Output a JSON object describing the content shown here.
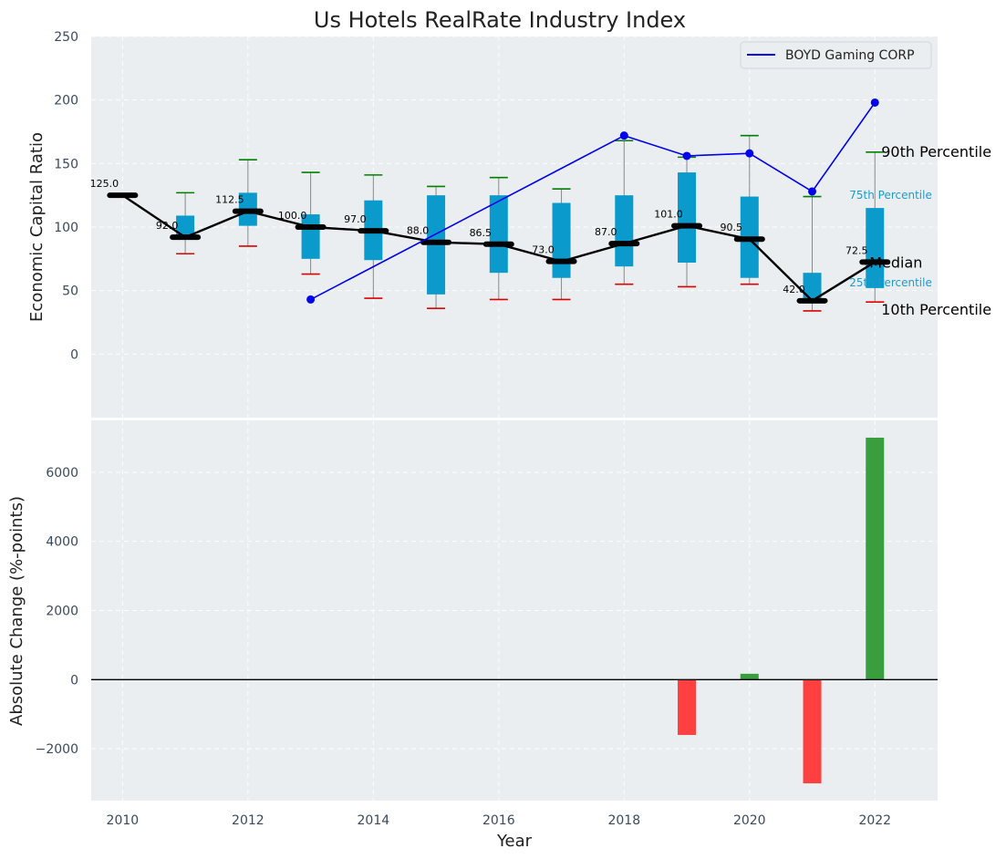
{
  "chart_data": [
    {
      "type": "box",
      "title": "Us Hotels RealRate Industry Index",
      "xlabel": "",
      "ylabel": "Economic Capital Ratio",
      "ylim": [
        -50,
        250
      ],
      "yticks": [
        0,
        50,
        100,
        150,
        200,
        250
      ],
      "xlim": [
        2009.5,
        2023
      ],
      "years": [
        2010,
        2011,
        2012,
        2013,
        2014,
        2015,
        2016,
        2017,
        2018,
        2019,
        2020,
        2021,
        2022
      ],
      "median": [
        125.0,
        92.0,
        112.5,
        100.0,
        97.0,
        88.0,
        86.5,
        73.0,
        87.0,
        101.0,
        90.5,
        42.0,
        72.5
      ],
      "median_labels": [
        "125.0",
        "92.0",
        "112.5",
        "100.0",
        "97.0",
        "88.0",
        "86.5",
        "73.0",
        "87.0",
        "101.0",
        "90.5",
        "42.0",
        "72.5"
      ],
      "q1": [
        null,
        90,
        101,
        75,
        74,
        47,
        64,
        60,
        69,
        72,
        60,
        40,
        52
      ],
      "q3": [
        null,
        109,
        127,
        110,
        121,
        125,
        125,
        119,
        125,
        143,
        124,
        64,
        115
      ],
      "p10": [
        null,
        79,
        85,
        63,
        44,
        36,
        43,
        43,
        55,
        53,
        55,
        34,
        41
      ],
      "p90": [
        null,
        127,
        153,
        143,
        141,
        132,
        139,
        130,
        168,
        155,
        172,
        124,
        159
      ],
      "company": {
        "name": "BOYD Gaming CORP",
        "years": [
          2013,
          2018,
          2019,
          2020,
          2021,
          2022
        ],
        "values": [
          43,
          172,
          156,
          158,
          128,
          198
        ]
      },
      "side_labels": {
        "p90": "90th Percentile",
        "q3": "75th Percentile",
        "median": "Median",
        "q1": "25th Percentile",
        "p10": "10th Percentile"
      },
      "colors": {
        "box": "#0a9acb",
        "median": "#000000",
        "company": "#0000ee",
        "p90_cap": "#008000",
        "p10_cap": "#dd0000",
        "whisker": "#888888"
      }
    },
    {
      "type": "bar",
      "xlabel": "Year",
      "ylabel": "Absolute Change (%-points)",
      "ylim": [
        -3500,
        7500
      ],
      "yticks": [
        -2000,
        0,
        2000,
        4000,
        6000
      ],
      "ytick_labels": [
        "−2000",
        "0",
        "2000",
        "4000",
        "6000"
      ],
      "xticks": [
        2010,
        2012,
        2014,
        2016,
        2018,
        2020,
        2022
      ],
      "years": [
        2019,
        2020,
        2021,
        2022
      ],
      "values": [
        -1600,
        170,
        -3000,
        7000
      ],
      "colors": {
        "positive": "#3a9d3e",
        "negative": "#ff4040"
      }
    }
  ]
}
